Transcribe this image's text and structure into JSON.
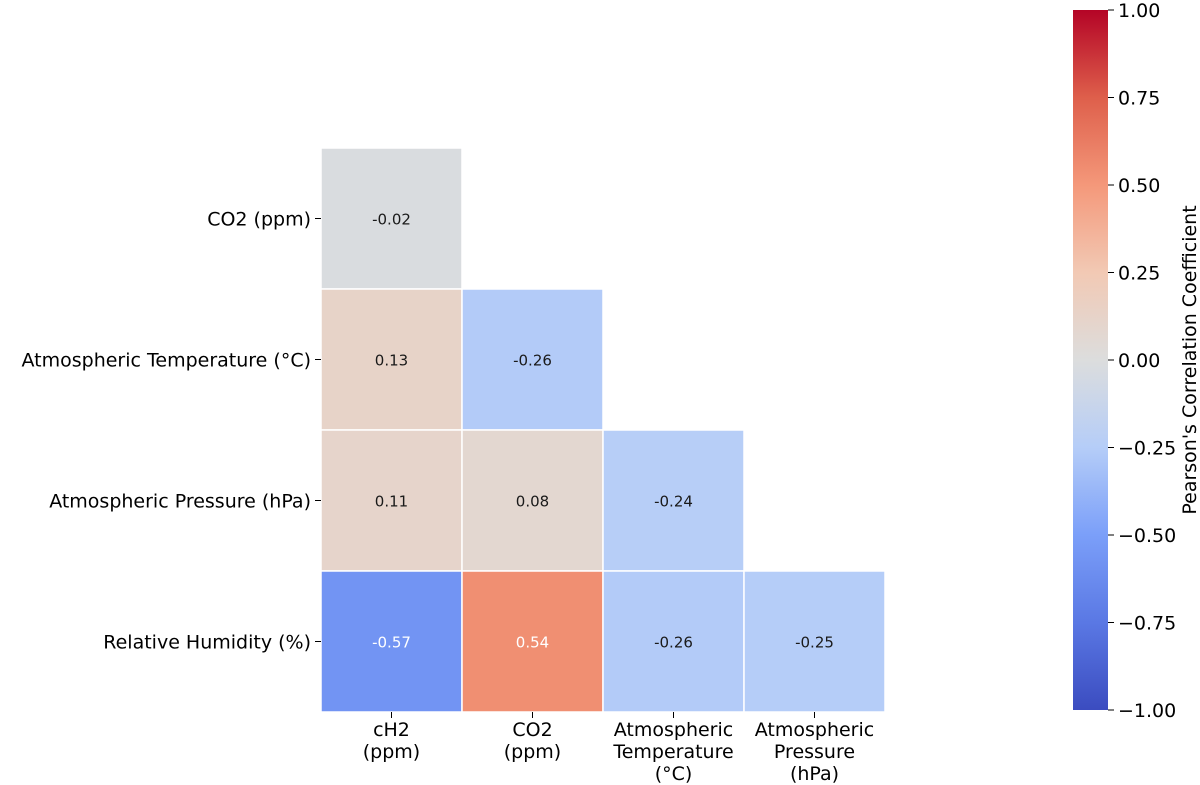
{
  "chart_data": {
    "type": "heatmap",
    "row_labels": [
      "CO2 (ppm)",
      "Atmospheric Temperature (°C)",
      "Atmospheric Pressure (hPa)",
      "Relative Humidity (%)"
    ],
    "column_labels": [
      [
        "cH2",
        "(ppm)"
      ],
      [
        "CO2",
        "(ppm)"
      ],
      [
        "Atmospheric",
        "Temperature",
        "(°C)"
      ],
      [
        "Atmospheric",
        "Pressure",
        "(hPa)"
      ]
    ],
    "values": [
      [
        -0.02,
        null,
        null,
        null
      ],
      [
        0.13,
        -0.26,
        null,
        null
      ],
      [
        0.11,
        0.08,
        -0.24,
        null
      ],
      [
        -0.57,
        0.54,
        -0.26,
        -0.25
      ]
    ],
    "value_labels": [
      [
        "-0.02",
        "",
        "",
        ""
      ],
      [
        "0.13",
        "-0.26",
        "",
        ""
      ],
      [
        "0.11",
        "0.08",
        "-0.24",
        ""
      ],
      [
        "-0.57",
        "0.54",
        "-0.26",
        "-0.25"
      ]
    ],
    "colormap": "coolwarm",
    "colorbar": {
      "label": "Pearson's Correlation Coefficient",
      "range": [
        -1.0,
        1.0
      ],
      "ticks": [
        1.0,
        0.75,
        0.5,
        0.25,
        0.0,
        -0.25,
        -0.5,
        -0.75,
        -1.0
      ],
      "tick_labels": [
        "1.00",
        "0.75",
        "0.50",
        "0.25",
        "0.00",
        "−0.25",
        "−0.50",
        "−0.75",
        "−1.00"
      ]
    },
    "colormap_stops": [
      [
        -1.0,
        "#3b4cc0"
      ],
      [
        -0.75,
        "#5a78e4"
      ],
      [
        -0.5,
        "#7b9ff9"
      ],
      [
        -0.25,
        "#b5cdf8"
      ],
      [
        0.0,
        "#dcdddd"
      ],
      [
        0.25,
        "#f2c9b4"
      ],
      [
        0.5,
        "#f4987a"
      ],
      [
        0.75,
        "#de5f4b"
      ],
      [
        1.0,
        "#b40426"
      ]
    ]
  }
}
